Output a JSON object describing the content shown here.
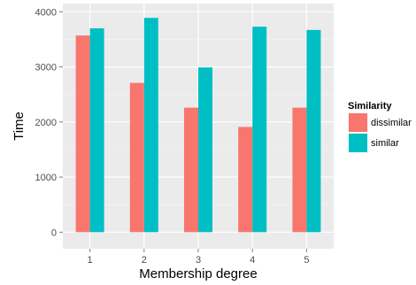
{
  "chart_data": {
    "type": "bar",
    "title": "",
    "xlabel": "Membership degree",
    "ylabel": "Time",
    "categories": [
      "1",
      "2",
      "3",
      "4",
      "5"
    ],
    "series": [
      {
        "name": "dissimilar",
        "color": "#f8766d",
        "values": [
          3570,
          2710,
          2260,
          1910,
          2260
        ]
      },
      {
        "name": "similar",
        "color": "#00bfc4",
        "values": [
          3700,
          3890,
          2990,
          3730,
          3670
        ]
      }
    ],
    "ylim": [
      -300,
      4150
    ],
    "yticks": [
      0,
      1000,
      2000,
      3000,
      4000
    ],
    "ytick_labels": [
      "0",
      "1000",
      "2000",
      "3000",
      "4000"
    ],
    "grid": true,
    "panel_background": "#ebebeb",
    "legend": {
      "title": "Similarity",
      "position": "right"
    }
  }
}
